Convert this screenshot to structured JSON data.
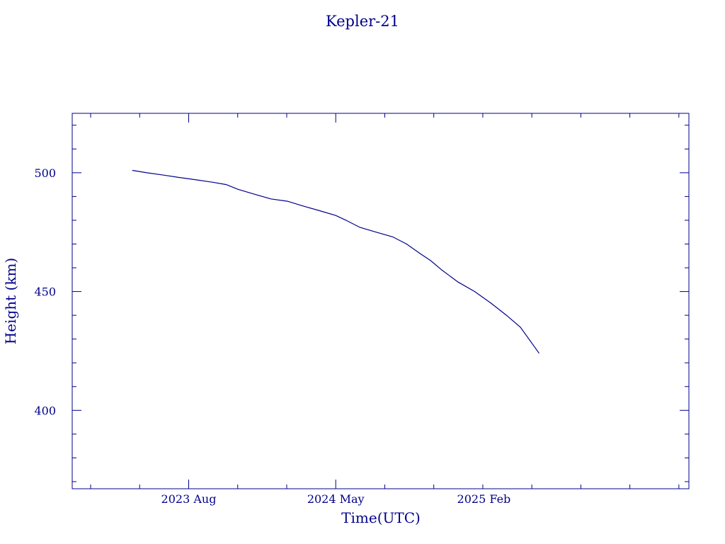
{
  "chart_data": {
    "type": "line",
    "title": "Kepler-21",
    "xlabel": "Time(UTC)",
    "ylabel": "Height (km)",
    "x_tick_labels": [
      "2023 Aug",
      "2024 May",
      "2025 Feb"
    ],
    "x_tick_dates": [
      "2023-08-01",
      "2024-05-01",
      "2025-02-01"
    ],
    "y_ticks": [
      400,
      450,
      500
    ],
    "ylim": [
      367,
      525
    ],
    "xlim": [
      "2022-12-27",
      "2026-02-18"
    ],
    "grid": false,
    "legend": "none",
    "color": "#00008b",
    "series": [
      {
        "x": [
          "2023-04-18",
          "2023-05-15",
          "2023-06-15",
          "2023-07-15",
          "2023-08-15",
          "2023-09-15",
          "2023-10-10",
          "2023-11-01",
          "2023-12-01",
          "2024-01-01",
          "2024-02-01",
          "2024-03-01",
          "2024-04-01",
          "2024-05-01",
          "2024-05-20",
          "2024-06-15",
          "2024-07-15",
          "2024-08-15",
          "2024-09-10",
          "2024-10-05",
          "2024-10-25",
          "2024-11-15",
          "2024-12-15",
          "2025-01-15",
          "2025-02-15",
          "2025-03-15",
          "2025-04-10",
          "2025-05-15"
        ],
        "y": [
          501,
          500,
          499,
          498,
          497,
          496,
          495,
          493,
          491,
          489,
          488,
          486,
          484,
          482,
          480,
          477,
          475,
          473,
          470,
          466,
          463,
          459,
          454,
          450,
          445,
          440,
          435,
          424
        ]
      }
    ]
  }
}
